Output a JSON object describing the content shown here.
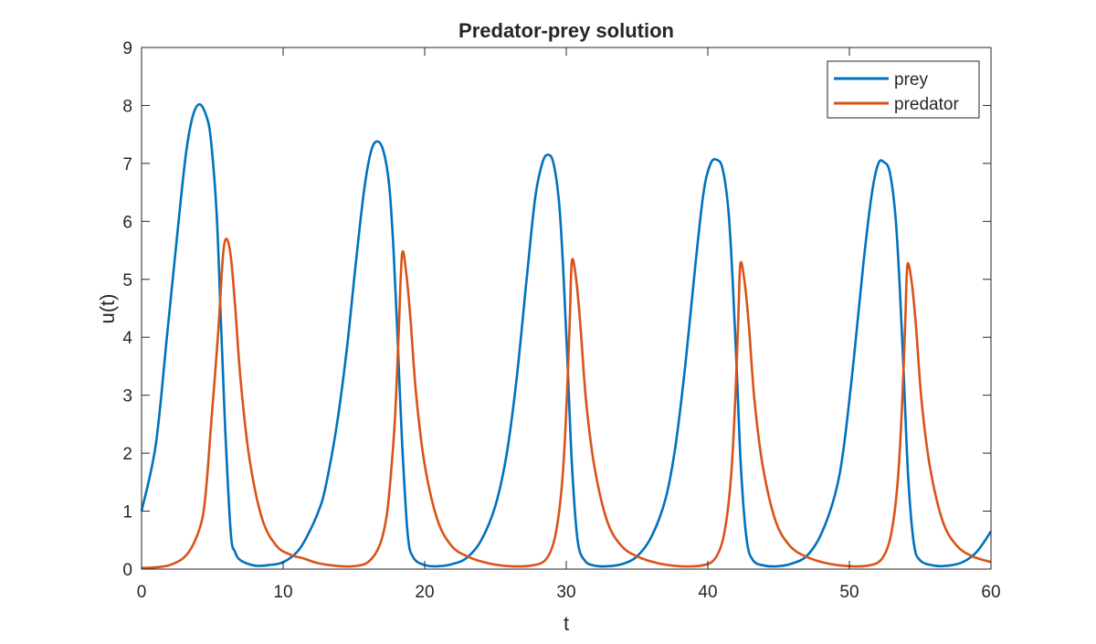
{
  "chart_data": {
    "type": "line",
    "title": "Predator-prey solution",
    "xlabel": "t",
    "ylabel": "u(t)",
    "xlim": [
      0,
      60
    ],
    "ylim": [
      0,
      9
    ],
    "xticks": [
      0,
      10,
      20,
      30,
      40,
      50,
      60
    ],
    "yticks": [
      0,
      1,
      2,
      3,
      4,
      5,
      6,
      7,
      8,
      9
    ],
    "grid": false,
    "box": true,
    "legend_position": "top-right",
    "series": [
      {
        "name": "prey",
        "color": "#0072BD",
        "x": [
          0,
          1,
          1.8,
          2.45,
          3.1,
          3.6,
          4.1,
          4.6,
          4.9,
          5.3,
          5.6,
          5.9,
          6.3,
          6.6,
          7,
          8,
          9,
          10,
          11,
          11.7,
          12.5,
          13,
          13.8,
          14.5,
          15.1,
          15.7,
          16.2,
          16.65,
          17.1,
          17.5,
          17.8,
          18.1,
          18.4,
          18.8,
          19.2,
          20,
          21,
          22,
          23,
          24,
          25,
          25.8,
          26.5,
          27.2,
          27.8,
          28.3,
          28.7,
          29.1,
          29.5,
          29.8,
          30.1,
          30.4,
          30.8,
          31.3,
          32,
          33,
          34,
          35,
          36,
          37,
          37.7,
          38.4,
          39.1,
          39.7,
          40.2,
          40.65,
          41.05,
          41.45,
          41.75,
          42.05,
          42.35,
          42.75,
          43.2,
          44,
          45,
          46,
          47,
          48,
          49,
          49.6,
          50.3,
          51,
          51.6,
          52.05,
          52.45,
          52.85,
          53.25,
          53.55,
          53.85,
          54.15,
          54.55,
          55,
          56,
          57,
          58,
          59,
          60
        ],
        "y": [
          1.0,
          2.14,
          4.03,
          5.6,
          7.1,
          7.8,
          8.02,
          7.8,
          7.4,
          6.15,
          4.3,
          2.46,
          0.63,
          0.3,
          0.15,
          0.06,
          0.07,
          0.12,
          0.3,
          0.57,
          1.0,
          1.42,
          2.5,
          3.8,
          5.2,
          6.5,
          7.2,
          7.38,
          7.2,
          6.6,
          5.5,
          3.9,
          2.2,
          0.6,
          0.2,
          0.07,
          0.05,
          0.09,
          0.2,
          0.5,
          1.1,
          2.0,
          3.3,
          5.0,
          6.4,
          7.0,
          7.15,
          7.0,
          6.3,
          5.1,
          3.5,
          1.8,
          0.5,
          0.15,
          0.06,
          0.05,
          0.09,
          0.22,
          0.55,
          1.2,
          2.1,
          3.5,
          5.2,
          6.5,
          7.0,
          7.06,
          6.9,
          6.2,
          5.0,
          3.4,
          1.7,
          0.5,
          0.15,
          0.06,
          0.05,
          0.1,
          0.23,
          0.6,
          1.3,
          2.1,
          3.6,
          5.3,
          6.5,
          7.0,
          7.02,
          6.85,
          6.1,
          4.9,
          3.3,
          1.6,
          0.45,
          0.15,
          0.06,
          0.06,
          0.12,
          0.3,
          0.65
        ]
      },
      {
        "name": "predator",
        "color": "#D95319",
        "x": [
          0,
          1,
          2,
          3,
          3.7,
          4.3,
          4.6,
          4.9,
          5.4,
          5.75,
          6.0,
          6.3,
          6.6,
          7.0,
          7.6,
          8.5,
          9.5,
          10.5,
          11.5,
          12.5,
          14,
          15,
          16,
          16.8,
          17.3,
          17.6,
          17.9,
          18.15,
          18.4,
          18.7,
          19.0,
          19.4,
          20,
          20.9,
          21.9,
          23,
          24.5,
          26,
          27.5,
          28.5,
          29.1,
          29.5,
          29.8,
          30.05,
          30.25,
          30.4,
          30.7,
          31.0,
          31.4,
          32,
          32.9,
          33.9,
          35,
          36.5,
          38,
          39.5,
          40.4,
          41,
          41.4,
          41.7,
          41.95,
          42.15,
          42.3,
          42.6,
          42.9,
          43.3,
          43.9,
          44.8,
          45.8,
          46.9,
          48.4,
          50,
          51.3,
          52.2,
          52.8,
          53.2,
          53.5,
          53.75,
          53.95,
          54.1,
          54.4,
          54.7,
          55.1,
          55.7,
          56.6,
          57.6,
          58.7,
          60
        ],
        "y": [
          0.02,
          0.03,
          0.07,
          0.2,
          0.45,
          0.88,
          1.5,
          2.46,
          4.04,
          5.4,
          5.7,
          5.4,
          4.57,
          3.25,
          1.94,
          0.88,
          0.41,
          0.25,
          0.18,
          0.1,
          0.05,
          0.05,
          0.12,
          0.4,
          0.9,
          1.6,
          2.6,
          4.0,
          5.43,
          5.1,
          4.3,
          3.0,
          1.8,
          0.85,
          0.4,
          0.22,
          0.1,
          0.05,
          0.06,
          0.15,
          0.45,
          1.0,
          1.8,
          3.0,
          4.3,
          5.32,
          5.0,
          4.2,
          2.9,
          1.75,
          0.82,
          0.4,
          0.22,
          0.1,
          0.05,
          0.06,
          0.15,
          0.45,
          1.0,
          1.8,
          3.0,
          4.3,
          5.27,
          4.95,
          4.2,
          2.9,
          1.75,
          0.82,
          0.4,
          0.22,
          0.1,
          0.05,
          0.06,
          0.15,
          0.45,
          1.0,
          1.8,
          3.0,
          4.3,
          5.25,
          4.95,
          4.2,
          2.9,
          1.75,
          0.82,
          0.4,
          0.22,
          0.12
        ]
      }
    ]
  }
}
